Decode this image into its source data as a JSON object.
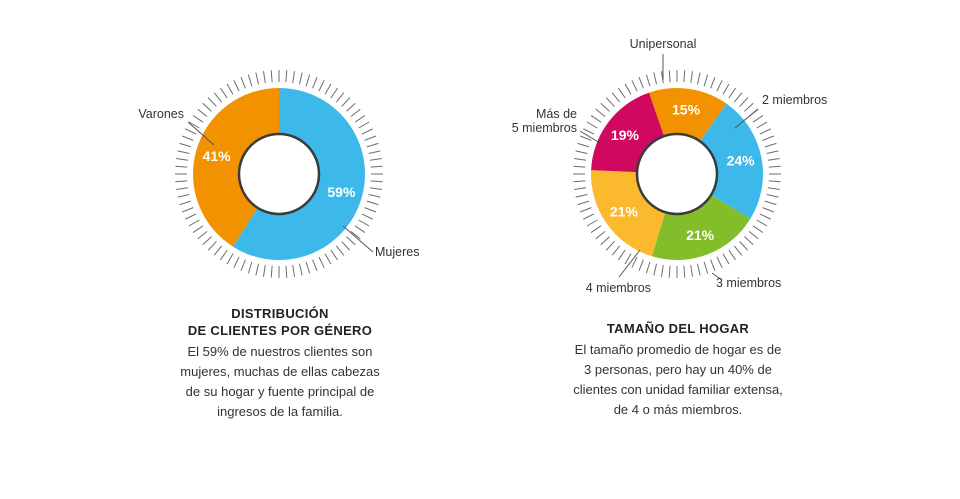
{
  "chart_data": [
    {
      "type": "pie",
      "title": "DISTRIBUCIÓN",
      "title_line2": "DE CLIENTES POR GÉNERO",
      "description": [
        "El 59% de nuestros clientes son",
        "mujeres, muchas de ellas cabezas",
        "de su hogar y fuente principal de",
        "ingresos de la familia."
      ],
      "slices": [
        {
          "label": "Mujeres",
          "value": 59,
          "value_label": "59%",
          "color": "#3DB8EA"
        },
        {
          "label": "Varones",
          "value": 41,
          "value_label": "41%",
          "color": "#F39200"
        }
      ]
    },
    {
      "type": "pie",
      "title": "TAMAÑO DEL HOGAR",
      "description": [
        "El tamaño promedio de hogar es de",
        "3 personas, pero hay un 40% de",
        "clientes con unidad familiar extensa,",
        "de 4 o más miembros."
      ],
      "slices": [
        {
          "label": "Unipersonal",
          "value": 15,
          "value_label": "15%",
          "color": "#F39200"
        },
        {
          "label": "2 miembros",
          "value": 24,
          "value_label": "24%",
          "color": "#3DB8EA"
        },
        {
          "label": "3 miembros",
          "value": 21,
          "value_label": "21%",
          "color": "#84BD2A"
        },
        {
          "label": "4 miembros",
          "value": 21,
          "value_label": "21%",
          "color": "#FBB92D"
        },
        {
          "label": "Más de 5 miembros",
          "label_lines": [
            "Más de",
            "5 miembros"
          ],
          "value": 19,
          "value_label": "19%",
          "color": "#D0085F"
        }
      ]
    }
  ]
}
